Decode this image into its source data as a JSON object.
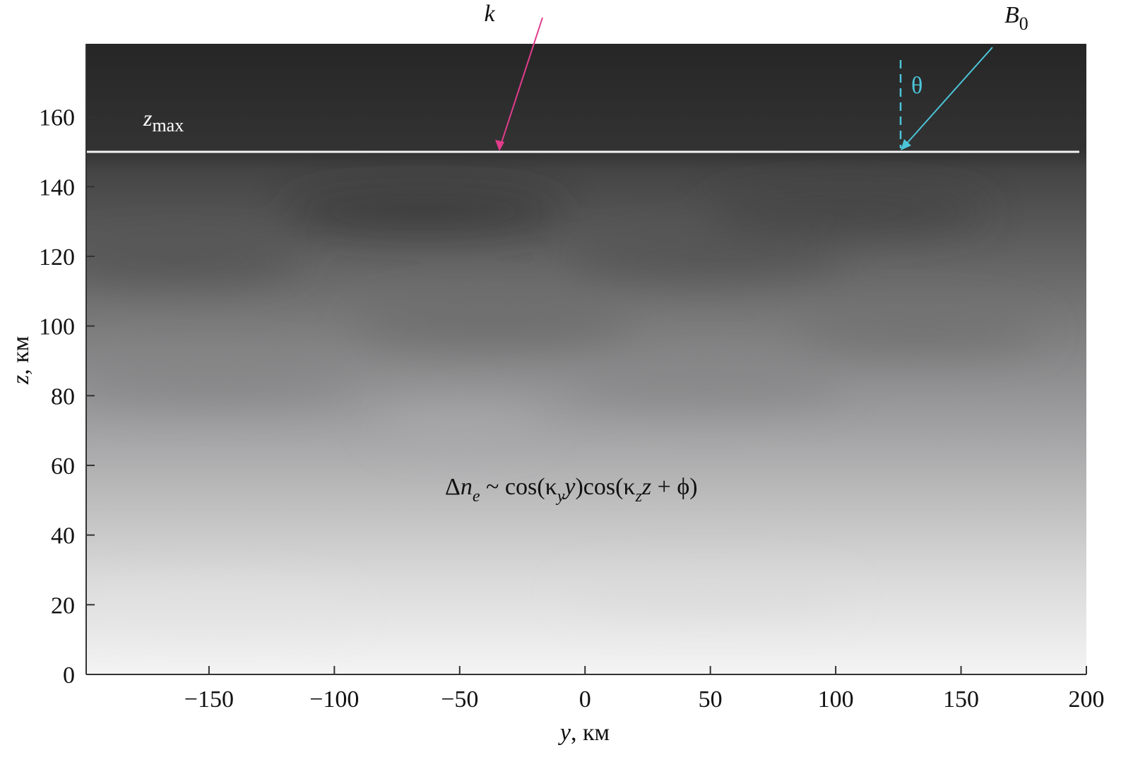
{
  "chart_data": {
    "type": "heatmap",
    "xlabel_var": "y",
    "xlabel_unit": ", км",
    "ylabel_var": "z",
    "ylabel_unit": ", км",
    "xlim": [
      -199,
      200
    ],
    "ylim": [
      0,
      181
    ],
    "xticks": [
      -150,
      -100,
      -50,
      0,
      50,
      100,
      150,
      200
    ],
    "xtick_labels": [
      "−150",
      "−100",
      "−50",
      "0",
      "50",
      "100",
      "150",
      "200"
    ],
    "yticks": [
      0,
      20,
      40,
      60,
      80,
      100,
      120,
      140,
      160
    ],
    "ytick_labels": [
      "0",
      "20",
      "40",
      "60",
      "80",
      "100",
      "120",
      "140",
      "160"
    ],
    "colormap": "grayscale, dark at top to light at bottom",
    "zmax": 150,
    "annotations": {
      "zmax_label": "z",
      "zmax_sub": "max",
      "k_label": "k",
      "b0_label": "B",
      "b0_sub": "0",
      "theta_label": "θ",
      "formula": {
        "delta": "Δ",
        "n": "n",
        "e": "e",
        "p1": " ~ cos(κ",
        "ky": "y",
        "p2": "y",
        "p3": ")cos(κ",
        "kz": "z",
        "p4": "z",
        "p5": " + ϕ)"
      }
    },
    "colors": {
      "k_arrow": "#e23c8c",
      "b0_arrow": "#4cc4d8",
      "zmax_line": "#f2f2f2"
    }
  }
}
